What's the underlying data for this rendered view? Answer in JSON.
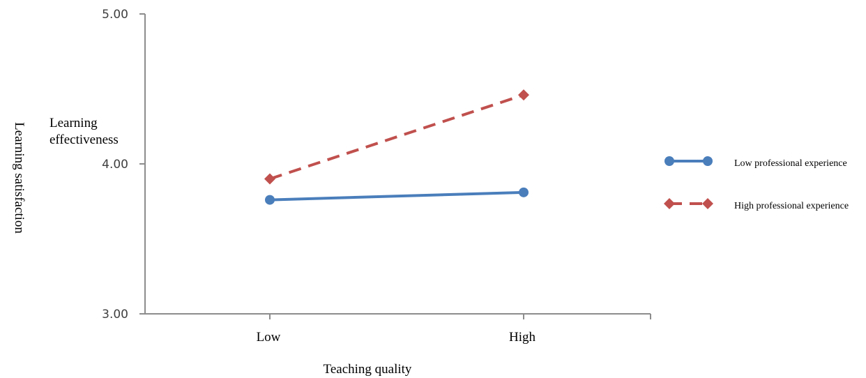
{
  "chart_data": {
    "type": "line",
    "categories": [
      "Low",
      "High"
    ],
    "series": [
      {
        "name": "Low professional experience",
        "values": [
          3.76,
          3.81
        ],
        "color": "#4a7ebb",
        "style": "solid",
        "marker": "circle"
      },
      {
        "name": "High professional experience",
        "values": [
          3.9,
          4.46
        ],
        "color": "#c0504d",
        "style": "dashed",
        "marker": "diamond"
      }
    ],
    "xlabel": "Teaching quality",
    "ylabel": "Learning satisfaction",
    "inner_label": [
      "Learning",
      "effectiveness"
    ],
    "ylim": [
      3.0,
      5.0
    ],
    "yticks": [
      "3.00",
      "4.00",
      "5.00"
    ],
    "legend_position": "right",
    "grid": false
  }
}
